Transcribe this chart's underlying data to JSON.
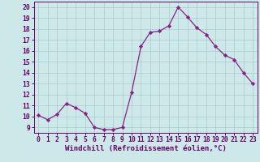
{
  "x": [
    0,
    1,
    2,
    3,
    4,
    5,
    6,
    7,
    8,
    9,
    10,
    11,
    12,
    13,
    14,
    15,
    16,
    17,
    18,
    19,
    20,
    21,
    22,
    23
  ],
  "y": [
    10.1,
    9.7,
    10.2,
    11.2,
    10.8,
    10.3,
    9.0,
    8.8,
    8.8,
    9.0,
    12.2,
    16.4,
    17.7,
    17.8,
    18.3,
    20.0,
    19.1,
    18.1,
    17.5,
    16.4,
    15.6,
    15.2,
    14.0,
    13.0
  ],
  "line_color": "#882288",
  "marker": "D",
  "marker_size": 2.2,
  "bg_color": "#cce8e8",
  "grid_color": "#aacccc",
  "xlabel": "Windchill (Refroidissement éolien,°C)",
  "ylabel": "",
  "xlim": [
    -0.5,
    23.5
  ],
  "ylim": [
    8.5,
    20.5
  ],
  "yticks": [
    9,
    10,
    11,
    12,
    13,
    14,
    15,
    16,
    17,
    18,
    19,
    20
  ],
  "xticks": [
    0,
    1,
    2,
    3,
    4,
    5,
    6,
    7,
    8,
    9,
    10,
    11,
    12,
    13,
    14,
    15,
    16,
    17,
    18,
    19,
    20,
    21,
    22,
    23
  ],
  "axis_color": "#660066",
  "tick_color": "#660066",
  "xlabel_fontsize": 6.5,
  "tick_fontsize": 5.8
}
